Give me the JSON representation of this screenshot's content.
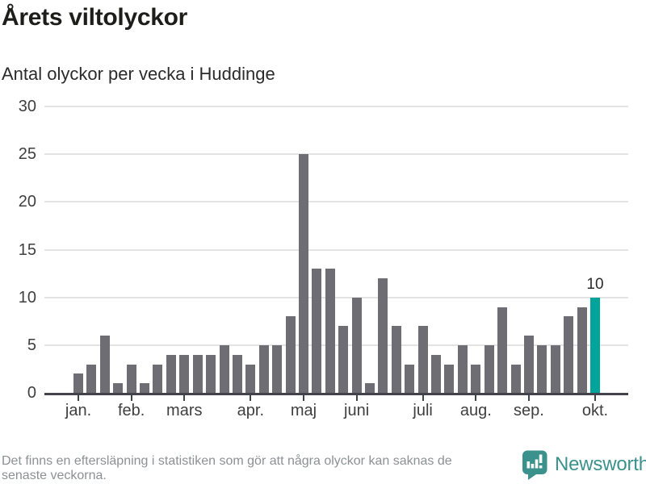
{
  "header": {
    "title": "Årets viltolyckor",
    "subtitle": "Antal olyckor per vecka i Huddinge"
  },
  "chart_data": {
    "type": "bar",
    "title": "Årets viltolyckor",
    "subtitle": "Antal olyckor per vecka i Huddinge",
    "x_unit": "vecka",
    "values": [
      2,
      3,
      6,
      1,
      3,
      1,
      3,
      4,
      4,
      4,
      4,
      5,
      4,
      3,
      5,
      5,
      8,
      25,
      13,
      13,
      7,
      10,
      1,
      12,
      7,
      3,
      7,
      4,
      3,
      5,
      3,
      5,
      9,
      3,
      6,
      5,
      5,
      8,
      9,
      10
    ],
    "ylim": [
      0,
      30
    ],
    "y_ticks": [
      0,
      5,
      10,
      15,
      20,
      25,
      30
    ],
    "month_ticks": [
      {
        "index": 0,
        "label": "jan."
      },
      {
        "index": 4,
        "label": "feb."
      },
      {
        "index": 8,
        "label": "mars"
      },
      {
        "index": 13,
        "label": "apr."
      },
      {
        "index": 17,
        "label": "maj"
      },
      {
        "index": 21,
        "label": "juni"
      },
      {
        "index": 26,
        "label": "juli"
      },
      {
        "index": 30,
        "label": "aug."
      },
      {
        "index": 34,
        "label": "sep."
      },
      {
        "index": 39,
        "label": "okt."
      }
    ],
    "highlight": {
      "index": 39,
      "value": 10,
      "label": "10"
    },
    "colors": {
      "bar": "#6e6d74",
      "highlight": "#00a49b",
      "gridline": "#e3e3e3",
      "axis": "#42424a",
      "tick_label": "#3f3f3f"
    },
    "grid": true,
    "legend": "none"
  },
  "footer": {
    "note": "Det finns en eftersläpning i statistiken som gör att några olyckor kan saknas de senaste veckorna.",
    "brand": "Newsworthy",
    "brand_color": "#3b928c"
  }
}
